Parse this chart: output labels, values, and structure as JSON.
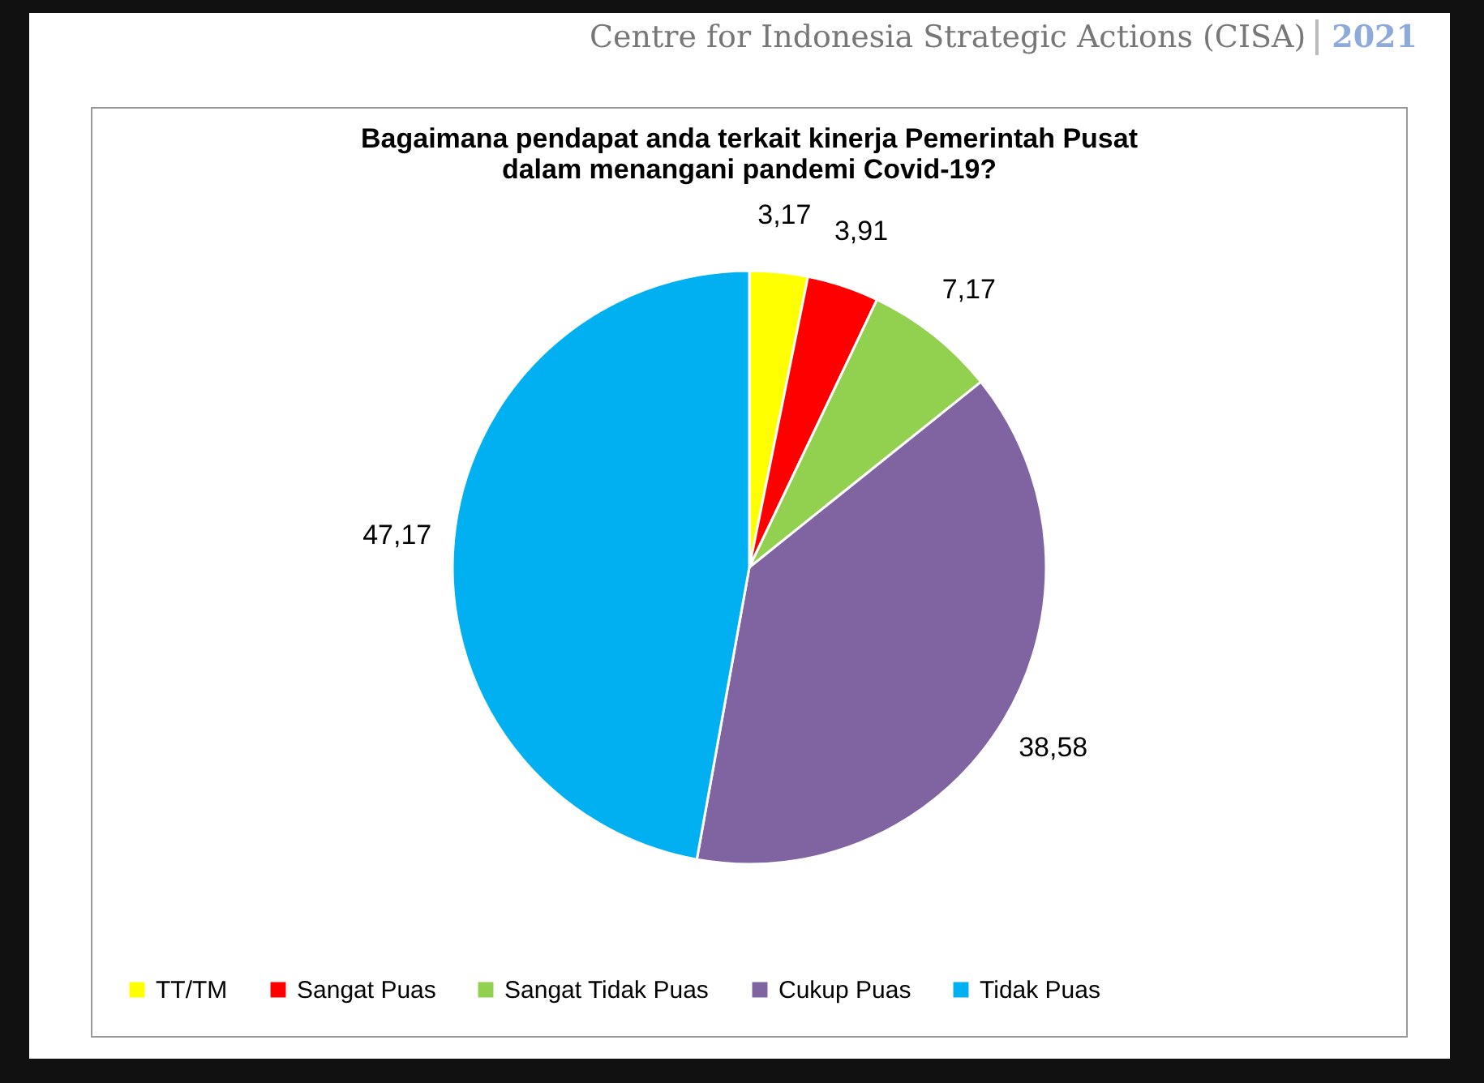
{
  "chart_data": {
    "type": "pie",
    "title": [
      "Bagaimana pendapat anda terkait kinerja Pemerintah Pusat",
      "dalam menangani pandemi Covid-19?"
    ],
    "categories": [
      "TT/TM",
      "Sangat Puas",
      "Sangat Tidak Puas",
      "Cukup Puas",
      "Tidak Puas"
    ],
    "values": [
      3.17,
      3.91,
      7.17,
      38.58,
      47.17
    ],
    "value_labels": [
      "3,17",
      "3,91",
      "7,17",
      "38,58",
      "47,17"
    ],
    "colors": [
      "#ffff00",
      "#ff0000",
      "#92d050",
      "#8064a2",
      "#00b0f0"
    ],
    "legend": "bottom",
    "annotations": [
      "Centre for Indonesia Strategic Actions (CISA)",
      "2021"
    ]
  }
}
